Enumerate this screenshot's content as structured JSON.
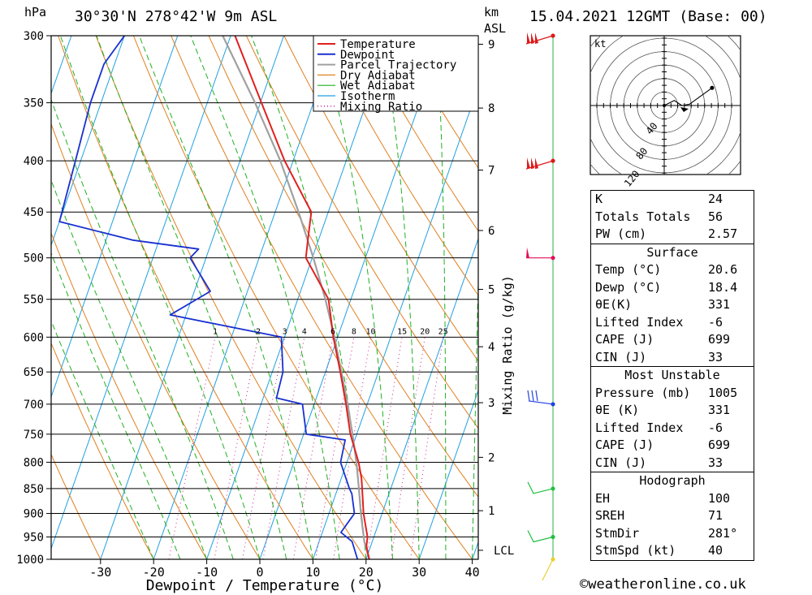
{
  "header": {
    "location": "30°30'N  278°42'W  9m  ASL",
    "datetime": "15.04.2021  12GMT  (Base: 00)",
    "pressure_unit": "hPa",
    "height_unit_1": "km",
    "height_unit_2": "ASL"
  },
  "chart_data": {
    "type": "line",
    "title": "30°30'N  278°42'W  9m  ASL",
    "xlabel": "Dewpoint / Temperature (°C)",
    "ylabel": "hPa",
    "secondary_ylabel": "Mixing Ratio (g/kg)",
    "x_ticks": [
      -30,
      -20,
      -10,
      0,
      10,
      20,
      30,
      40
    ],
    "pressure_levels": [
      300,
      350,
      400,
      450,
      500,
      550,
      600,
      650,
      700,
      750,
      800,
      850,
      900,
      950,
      1000
    ],
    "height_ticks_km": [
      1,
      2,
      3,
      4,
      5,
      6,
      7,
      8,
      9
    ],
    "mixing_ratio_labels": [
      1,
      2,
      3,
      4,
      6,
      8,
      10,
      15,
      20,
      25
    ],
    "lcl_label": "LCL",
    "legend": [
      "Temperature",
      "Dewpoint",
      "Parcel Trajectory",
      "Dry Adiabat",
      "Wet Adiabat",
      "Isotherm",
      "Mixing Ratio"
    ],
    "colors": {
      "temperature": "#e02020",
      "dewpoint": "#1830d0",
      "parcel": "#a0a0a0",
      "dry_adiabat": "#e08020",
      "wet_adiabat": "#20b020",
      "isotherm": "#20a0e0",
      "mixing_ratio": "#d02090"
    },
    "series": [
      {
        "name": "Temperature",
        "pressure": [
          1000,
          970,
          950,
          900,
          850,
          830,
          800,
          750,
          700,
          650,
          600,
          550,
          500,
          480,
          450,
          400,
          350,
          300
        ],
        "values": [
          20.6,
          19.2,
          18.8,
          16.5,
          14.6,
          13.8,
          12.2,
          8.8,
          6.0,
          2.8,
          -0.8,
          -4.2,
          -11.2,
          -12.0,
          -13.2,
          -21.6,
          -29.8,
          -39.2
        ]
      },
      {
        "name": "Dewpoint",
        "pressure": [
          1000,
          960,
          940,
          900,
          860,
          850,
          800,
          760,
          750,
          700,
          690,
          650,
          600,
          590,
          570,
          540,
          500,
          490,
          480,
          460,
          400,
          350,
          320,
          300
        ],
        "values": [
          18.4,
          16.2,
          13.5,
          14.8,
          13.0,
          12.2,
          8.8,
          8.2,
          0.5,
          -2.2,
          -7.5,
          -8.0,
          -10.6,
          -18.0,
          -33.0,
          -27.0,
          -33.0,
          -32.0,
          -45.0,
          -60.0,
          -61.0,
          -62.0,
          -62.0,
          -60.0
        ]
      },
      {
        "name": "Parcel Trajectory",
        "pressure": [
          1000,
          960,
          900,
          850,
          800,
          750,
          700,
          650,
          600,
          550,
          500,
          450,
          400,
          350,
          300
        ],
        "values": [
          20.6,
          18.5,
          16.0,
          14.0,
          11.8,
          9.2,
          6.3,
          3.0,
          -0.6,
          -4.8,
          -9.8,
          -15.6,
          -22.4,
          -31.0,
          -41.5
        ]
      }
    ]
  },
  "hodograph": {
    "unit": "kt",
    "ring_labels": [
      "40",
      "80",
      "120"
    ],
    "points_kt": [
      [
        0,
        0
      ],
      [
        8,
        4
      ],
      [
        14,
        0
      ],
      [
        20,
        1
      ],
      [
        38,
        14
      ]
    ]
  },
  "winds": {
    "levels": [
      1000,
      950,
      850,
      700,
      500,
      400,
      300
    ]
  },
  "indices": [
    {
      "label": "K",
      "value": "24"
    },
    {
      "label": "Totals Totals",
      "value": "56"
    },
    {
      "label": "PW (cm)",
      "value": "2.57"
    }
  ],
  "surface": {
    "title": "Surface",
    "rows": [
      {
        "label": "Temp (°C)",
        "value": "20.6"
      },
      {
        "label": "Dewp (°C)",
        "value": "18.4"
      },
      {
        "label": "θE(K)",
        "value": "331"
      },
      {
        "label": "Lifted Index",
        "value": "-6"
      },
      {
        "label": "CAPE (J)",
        "value": "699"
      },
      {
        "label": "CIN (J)",
        "value": "33"
      }
    ]
  },
  "most_unstable": {
    "title": "Most Unstable",
    "rows": [
      {
        "label": "Pressure (mb)",
        "value": "1005"
      },
      {
        "label": "θE (K)",
        "value": "331"
      },
      {
        "label": "Lifted Index",
        "value": "-6"
      },
      {
        "label": "CAPE (J)",
        "value": "699"
      },
      {
        "label": "CIN (J)",
        "value": "33"
      }
    ]
  },
  "hodograph_stats": {
    "title": "Hodograph",
    "rows": [
      {
        "label": "EH",
        "value": "100"
      },
      {
        "label": "SREH",
        "value": "71"
      },
      {
        "label": "StmDir",
        "value": "281°"
      },
      {
        "label": "StmSpd (kt)",
        "value": "40"
      }
    ]
  },
  "footer": "©weatheronline.co.uk"
}
